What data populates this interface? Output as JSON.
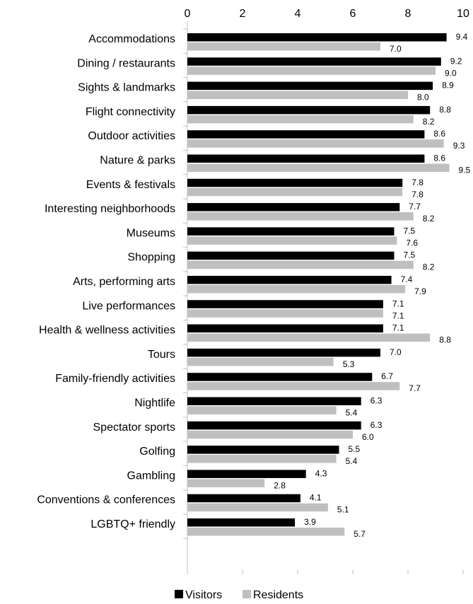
{
  "chart_data": {
    "type": "bar",
    "orientation": "horizontal",
    "x_axis_position": "top",
    "xlim": [
      0,
      10
    ],
    "xticks": [
      "0",
      "2",
      "4",
      "6",
      "8",
      "10"
    ],
    "grid": false,
    "legend_position": "bottom",
    "categories": [
      "Accommodations",
      "Dining / restaurants",
      "Sights & landmarks",
      "Flight connectivity",
      "Outdoor activities",
      "Nature & parks",
      "Events & festivals",
      "Interesting neighborhoods",
      "Museums",
      "Shopping",
      "Arts, performing arts",
      "Live performances",
      "Health & wellness activities",
      "Tours",
      "Family-friendly activities",
      "Nightlife",
      "Spectator sports",
      "Golfing",
      "Gambling",
      "Conventions & conferences",
      "LGBTQ+ friendly"
    ],
    "series": [
      {
        "name": "Visitors",
        "color": "#000000",
        "values": [
          9.4,
          9.2,
          8.9,
          8.8,
          8.6,
          8.6,
          7.8,
          7.7,
          7.5,
          7.5,
          7.4,
          7.1,
          7.1,
          7.0,
          6.7,
          6.3,
          6.3,
          5.5,
          4.3,
          4.1,
          3.9
        ],
        "labels": [
          "9.4",
          "9.2",
          "8.9",
          "8.8",
          "8.6",
          "8.6",
          "7.8",
          "7.7",
          "7.5",
          "7.5",
          "7.4",
          "7.1",
          "7.1",
          "7.0",
          "6.7",
          "6.3",
          "6.3",
          "5.5",
          "4.3",
          "4.1",
          "3.9"
        ]
      },
      {
        "name": "Residents",
        "color": "#bfbfbf",
        "values": [
          7.0,
          9.0,
          8.0,
          8.2,
          9.3,
          9.5,
          7.8,
          8.2,
          7.6,
          8.2,
          7.9,
          7.1,
          8.8,
          5.3,
          7.7,
          5.4,
          6.0,
          5.4,
          2.8,
          5.1,
          5.7
        ],
        "labels": [
          "7.0",
          "9.0",
          "8.0",
          "8.2",
          "9.3",
          "9.5",
          "7.8",
          "8.2",
          "7.6",
          "8.2",
          "7.9",
          "7.1",
          "8.8",
          "5.3",
          "7.7",
          "5.4",
          "6.0",
          "5.4",
          "2.8",
          "5.1",
          "5.7"
        ]
      }
    ]
  }
}
